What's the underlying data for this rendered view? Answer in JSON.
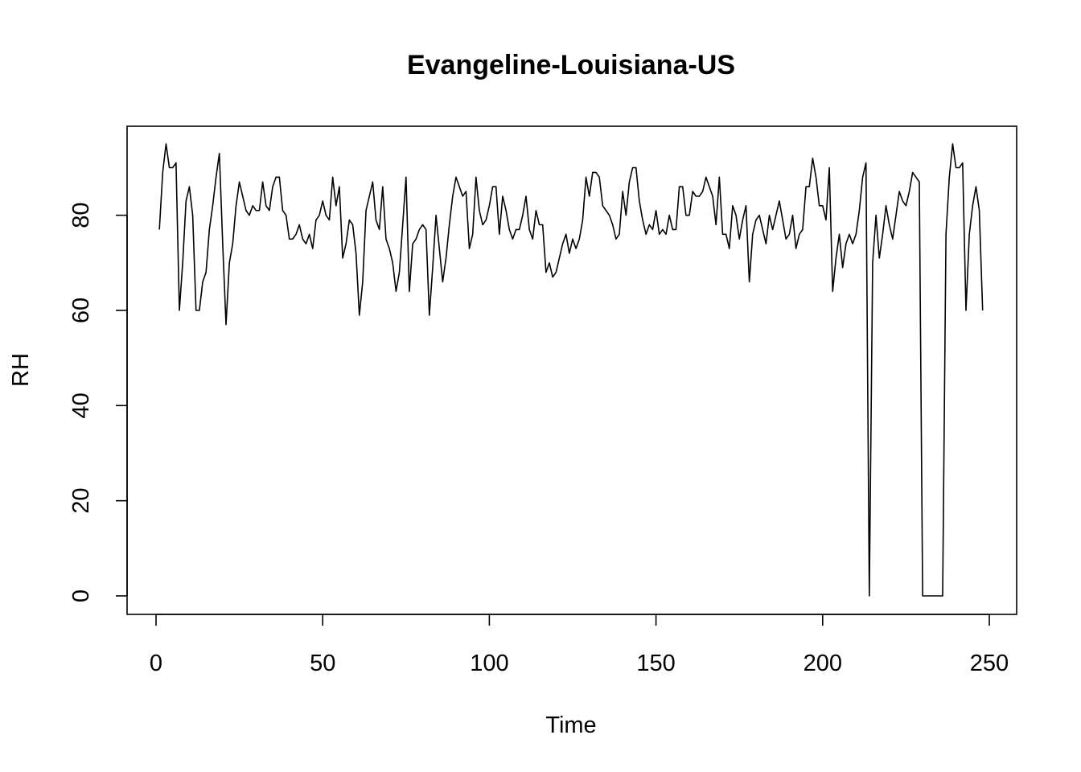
{
  "chart_data": {
    "type": "line",
    "title": "Evangeline-Louisiana-US",
    "xlabel": "Time",
    "ylabel": "RH",
    "xlim": [
      1,
      248
    ],
    "ylim": [
      0,
      95
    ],
    "x_ticks": [
      0,
      50,
      100,
      150,
      200,
      250
    ],
    "x_tick_labels": [
      "0",
      "50",
      "100",
      "150",
      "200",
      "250"
    ],
    "y_ticks": [
      0,
      20,
      40,
      60,
      80
    ],
    "y_tick_labels": [
      "0",
      "20",
      "40",
      "60",
      "80"
    ],
    "grid": false,
    "legend": "none",
    "series": [
      {
        "x_start": 1,
        "x_step": 1,
        "values": [
          77,
          89,
          95,
          90,
          90,
          91,
          60,
          70,
          83,
          86,
          80,
          60,
          60,
          66,
          68,
          77,
          82,
          88,
          93,
          74,
          57,
          70,
          74,
          82,
          87,
          84,
          81,
          80,
          82,
          81,
          81,
          87,
          82,
          81,
          86,
          88,
          88,
          81,
          80,
          75,
          75,
          76,
          78,
          75,
          74,
          76,
          73,
          79,
          80,
          83,
          80,
          79,
          88,
          82,
          86,
          71,
          74,
          79,
          78,
          72,
          59,
          66,
          81,
          84,
          87,
          79,
          77,
          86,
          75,
          73,
          70,
          64,
          68,
          78,
          88,
          64,
          74,
          75,
          77,
          78,
          77,
          59,
          69,
          80,
          73,
          66,
          71,
          78,
          84,
          88,
          86,
          84,
          85,
          73,
          76,
          88,
          81,
          78,
          79,
          82,
          86,
          86,
          76,
          84,
          81,
          77,
          75,
          77,
          77,
          80,
          84,
          77,
          75,
          81,
          78,
          78,
          68,
          70,
          67,
          68,
          71,
          74,
          76,
          72,
          75,
          73,
          75,
          79,
          88,
          84,
          89,
          89,
          88,
          82,
          81,
          80,
          78,
          75,
          76,
          85,
          80,
          87,
          90,
          90,
          83,
          79,
          76,
          78,
          77,
          81,
          76,
          77,
          76,
          80,
          77,
          77,
          86,
          86,
          80,
          80,
          85,
          84,
          84,
          85,
          88,
          86,
          84,
          78,
          88,
          76,
          76,
          73,
          82,
          80,
          75,
          79,
          82,
          66,
          76,
          79,
          80,
          77,
          74,
          80,
          77,
          80,
          83,
          79,
          75,
          76,
          80,
          73,
          76,
          77,
          86,
          86,
          92,
          88,
          82,
          82,
          79,
          90,
          64,
          71,
          76,
          69,
          74,
          76,
          74,
          76,
          81,
          88,
          91,
          0,
          70,
          80,
          71,
          76,
          82,
          78,
          75,
          80,
          85,
          83,
          82,
          85,
          89,
          88,
          87,
          0,
          0,
          0,
          0,
          0,
          0,
          0,
          76,
          88,
          95,
          90,
          90,
          91,
          60,
          76,
          82,
          86,
          81,
          60
        ]
      }
    ]
  }
}
